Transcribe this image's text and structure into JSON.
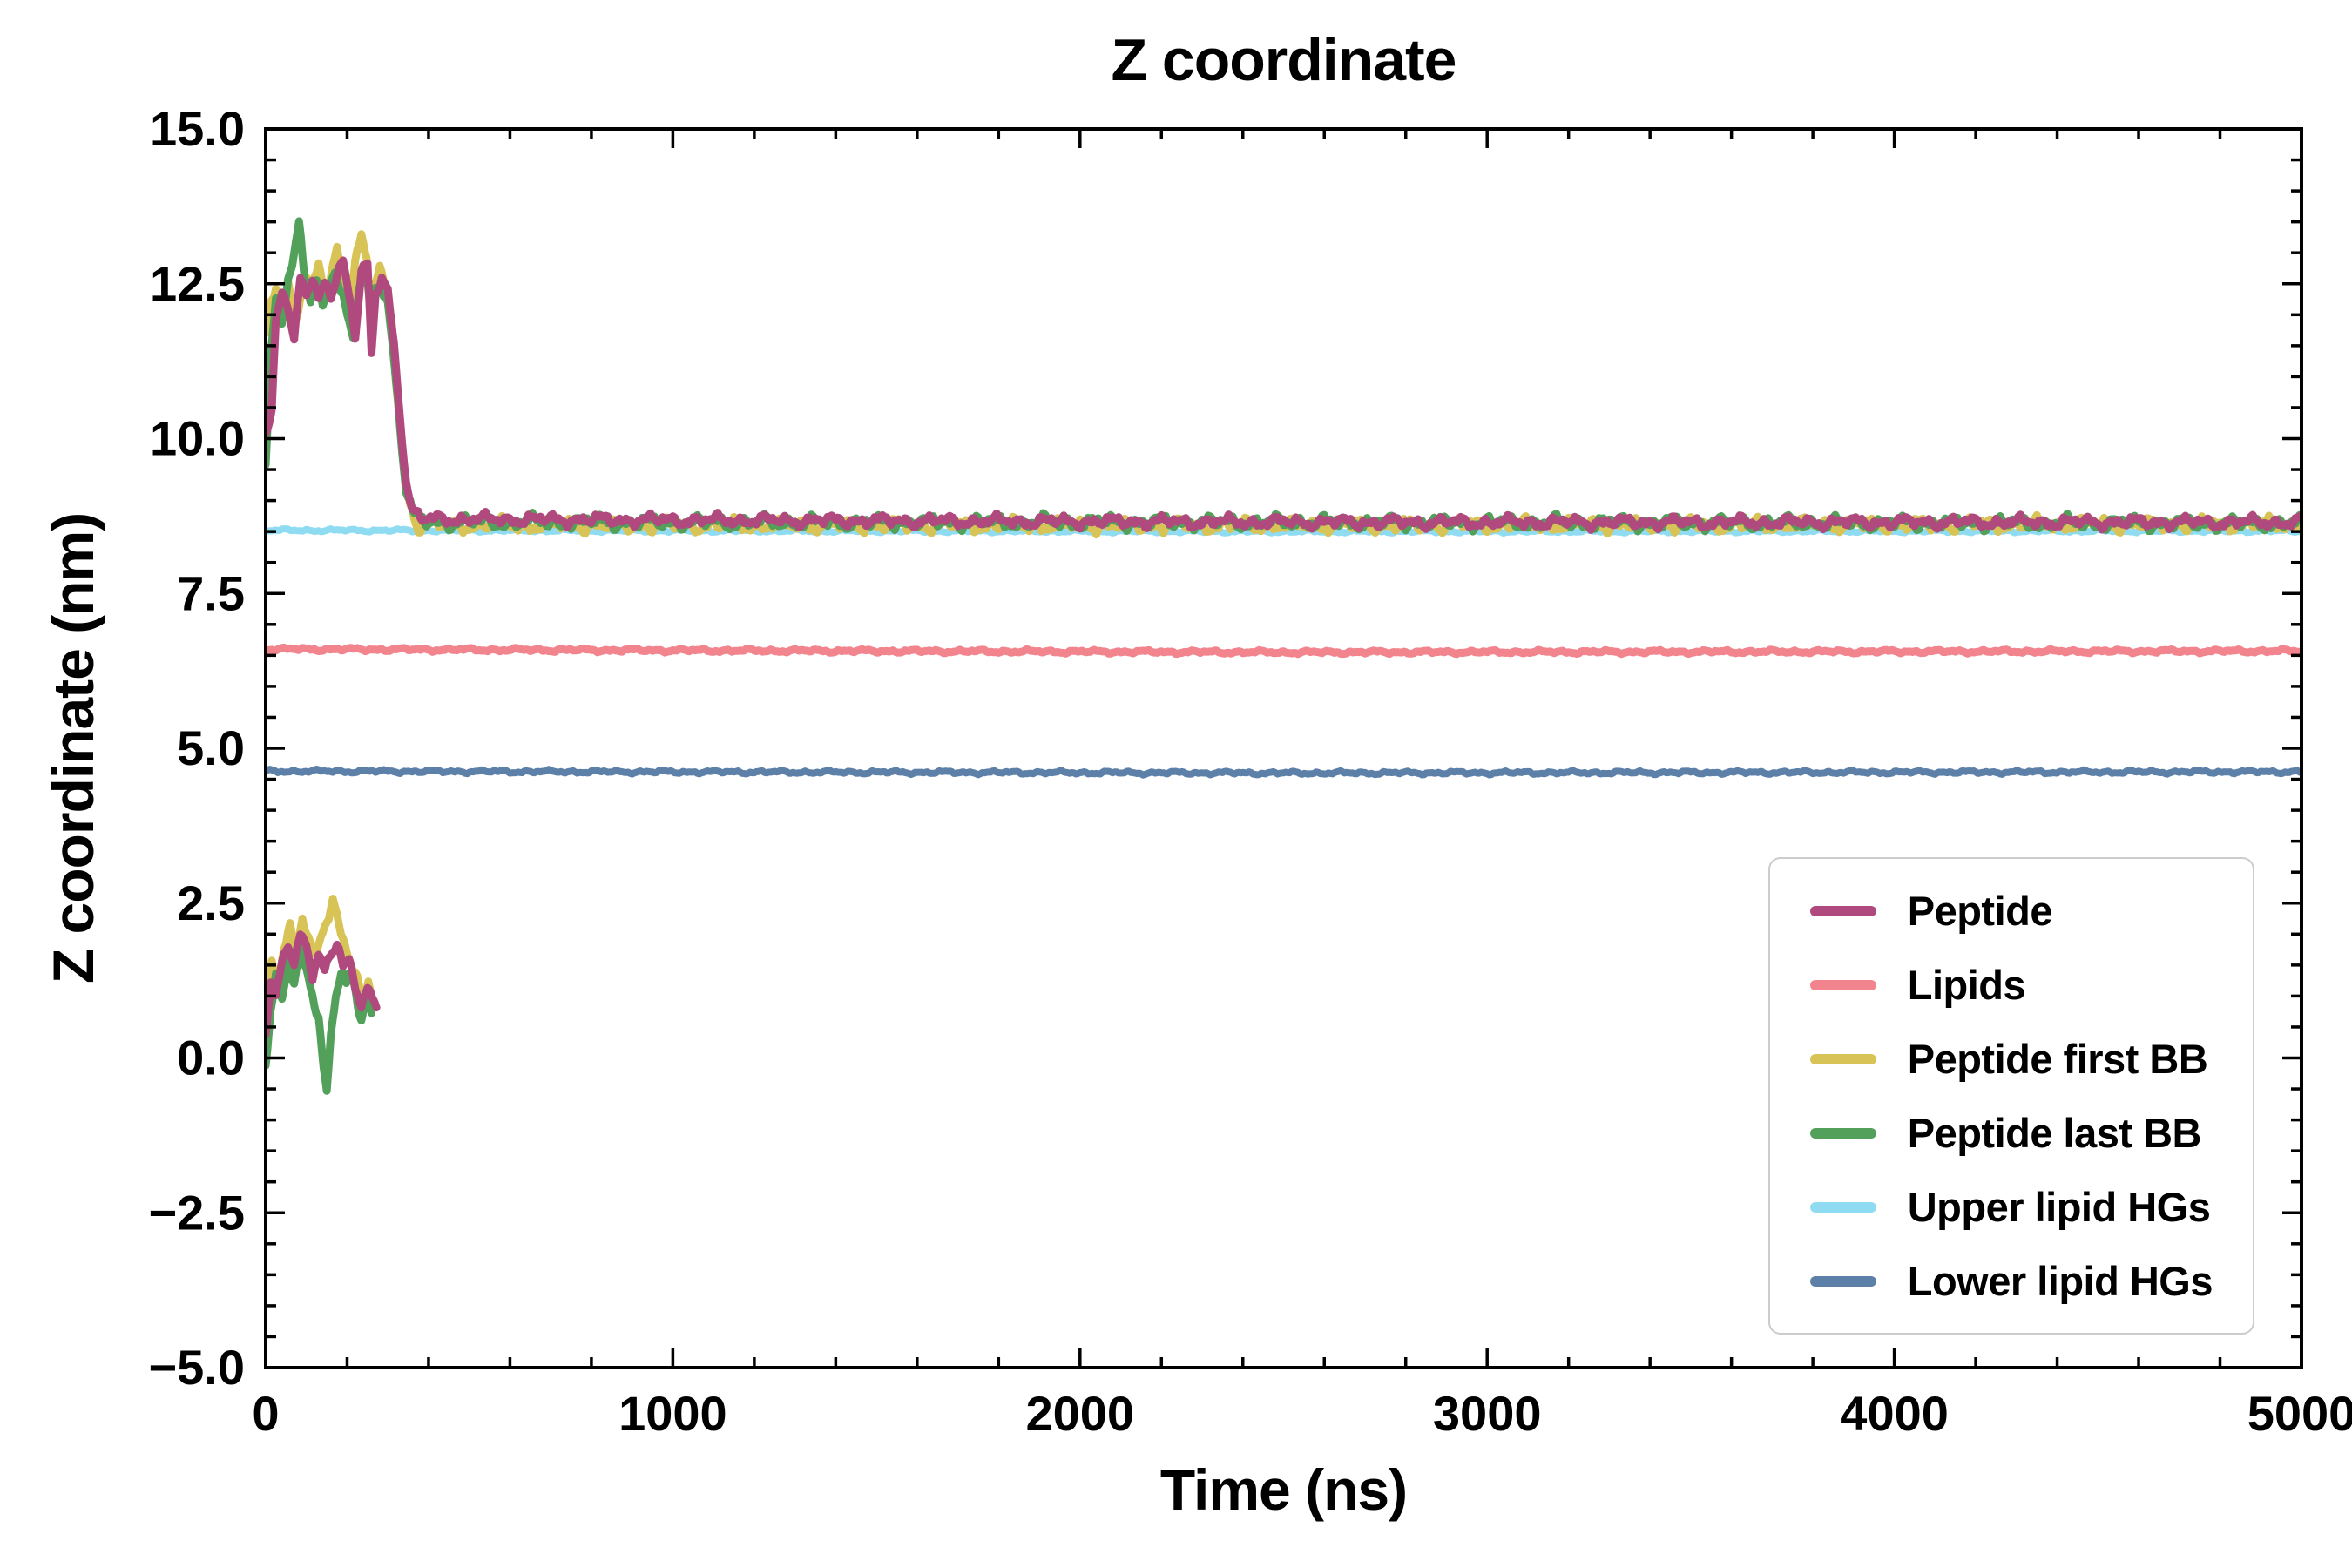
{
  "chart_data": {
    "type": "line",
    "title": "Z coordinate",
    "xlabel": "Time (ns)",
    "ylabel": "Z coordinate (nm)",
    "xlim": [
      0,
      5000
    ],
    "ylim": [
      -5,
      15
    ],
    "x_ticks": [
      0,
      1000,
      2000,
      3000,
      4000,
      5000
    ],
    "x_tick_labels": [
      "0",
      "1000",
      "2000",
      "3000",
      "4000",
      "5000"
    ],
    "y_ticks": [
      -5,
      -2.5,
      0,
      2.5,
      5,
      7.5,
      10,
      12.5,
      15
    ],
    "y_tick_labels": [
      "−5.0",
      "−2.5",
      "0.0",
      "2.5",
      "5.0",
      "7.5",
      "10.0",
      "12.5",
      "15.0"
    ],
    "x_minor_step": 200,
    "y_minor_step": 0.5,
    "grid": false,
    "legend_position": "lower right",
    "axis_color": "#000000",
    "series": [
      {
        "name": "Peptide",
        "color": "#b04a7e",
        "linewidth": 9,
        "zorder": 6,
        "noise": 0.1,
        "segments": [
          [
            [
              0,
              10.1
            ],
            [
              15,
              10.4
            ],
            [
              25,
              11.9
            ],
            [
              40,
              12.4
            ],
            [
              55,
              12.2
            ],
            [
              70,
              11.6
            ],
            [
              85,
              12.6
            ],
            [
              100,
              12.3
            ],
            [
              115,
              12.6
            ],
            [
              130,
              12.2
            ],
            [
              145,
              12.5
            ],
            [
              160,
              12.3
            ],
            [
              175,
              12.7
            ],
            [
              190,
              12.9
            ],
            [
              205,
              12.3
            ],
            [
              220,
              11.7
            ],
            [
              235,
              12.7
            ],
            [
              250,
              12.8
            ],
            [
              260,
              11.3
            ],
            [
              270,
              12.3
            ],
            [
              285,
              12.6
            ],
            [
              300,
              12.4
            ],
            [
              315,
              11.5
            ],
            [
              330,
              10.4
            ],
            [
              345,
              9.3
            ],
            [
              360,
              8.85
            ],
            [
              380,
              8.7
            ],
            [
              2500,
              8.65
            ],
            [
              5000,
              8.65
            ]
          ],
          [
            [
              0,
              0.4
            ],
            [
              12,
              1.2
            ],
            [
              25,
              1.0
            ],
            [
              40,
              1.6
            ],
            [
              55,
              1.9
            ],
            [
              70,
              1.5
            ],
            [
              85,
              2.0
            ],
            [
              100,
              1.8
            ],
            [
              115,
              1.3
            ],
            [
              130,
              1.6
            ],
            [
              145,
              1.4
            ],
            [
              160,
              1.7
            ],
            [
              175,
              1.9
            ],
            [
              190,
              1.5
            ],
            [
              205,
              1.6
            ],
            [
              220,
              1.2
            ],
            [
              235,
              0.8
            ],
            [
              250,
              1.1
            ],
            [
              262,
              0.9
            ],
            [
              272,
              0.8
            ]
          ]
        ]
      },
      {
        "name": "Lipids",
        "color": "#f2848e",
        "linewidth": 9,
        "zorder": 3,
        "noise": 0.03,
        "segments": [
          [
            [
              0,
              6.6
            ],
            [
              2500,
              6.55
            ],
            [
              5000,
              6.57
            ]
          ]
        ]
      },
      {
        "name": "Peptide first BB",
        "color": "#d8c356",
        "linewidth": 9,
        "zorder": 4,
        "noise": 0.12,
        "segments": [
          [
            [
              0,
              11.6
            ],
            [
              12,
              12.1
            ],
            [
              25,
              12.4
            ],
            [
              40,
              12.0
            ],
            [
              55,
              12.5
            ],
            [
              70,
              11.8
            ],
            [
              85,
              12.3
            ],
            [
              100,
              12.7
            ],
            [
              115,
              12.4
            ],
            [
              130,
              12.8
            ],
            [
              145,
              12.3
            ],
            [
              160,
              12.6
            ],
            [
              175,
              13.0
            ],
            [
              190,
              12.5
            ],
            [
              205,
              12.2
            ],
            [
              220,
              12.9
            ],
            [
              235,
              13.3
            ],
            [
              248,
              12.9
            ],
            [
              258,
              11.9
            ],
            [
              268,
              12.5
            ],
            [
              280,
              12.7
            ],
            [
              295,
              12.4
            ],
            [
              310,
              11.8
            ],
            [
              325,
              10.6
            ],
            [
              340,
              9.5
            ],
            [
              355,
              8.9
            ],
            [
              375,
              8.6
            ],
            [
              2500,
              8.6
            ],
            [
              5000,
              8.62
            ]
          ],
          [
            [
              0,
              1.0
            ],
            [
              15,
              1.5
            ],
            [
              30,
              1.2
            ],
            [
              45,
              1.8
            ],
            [
              60,
              2.1
            ],
            [
              75,
              1.7
            ],
            [
              90,
              2.3
            ],
            [
              105,
              2.0
            ],
            [
              120,
              1.6
            ],
            [
              135,
              1.9
            ],
            [
              150,
              2.2
            ],
            [
              165,
              2.5
            ],
            [
              180,
              2.1
            ],
            [
              195,
              1.8
            ],
            [
              210,
              1.6
            ],
            [
              225,
              1.3
            ],
            [
              240,
              0.9
            ],
            [
              252,
              1.2
            ],
            [
              265,
              1.0
            ]
          ]
        ]
      },
      {
        "name": "Peptide last BB",
        "color": "#52a05a",
        "linewidth": 9,
        "zorder": 5,
        "noise": 0.12,
        "segments": [
          [
            [
              0,
              9.6
            ],
            [
              12,
              11.4
            ],
            [
              25,
              12.2
            ],
            [
              40,
              11.9
            ],
            [
              55,
              12.6
            ],
            [
              70,
              13.0
            ],
            [
              82,
              13.4
            ],
            [
              95,
              12.6
            ],
            [
              110,
              12.2
            ],
            [
              125,
              12.6
            ],
            [
              140,
              12.1
            ],
            [
              155,
              12.4
            ],
            [
              170,
              12.8
            ],
            [
              185,
              12.4
            ],
            [
              200,
              12.0
            ],
            [
              215,
              11.6
            ],
            [
              230,
              12.5
            ],
            [
              245,
              12.7
            ],
            [
              258,
              12.0
            ],
            [
              270,
              12.4
            ],
            [
              285,
              12.5
            ],
            [
              300,
              12.2
            ],
            [
              315,
              11.3
            ],
            [
              330,
              10.2
            ],
            [
              345,
              9.2
            ],
            [
              360,
              8.8
            ],
            [
              380,
              8.65
            ],
            [
              2500,
              8.65
            ],
            [
              5000,
              8.63
            ]
          ],
          [
            [
              0,
              -0.1
            ],
            [
              12,
              0.8
            ],
            [
              25,
              1.3
            ],
            [
              40,
              1.0
            ],
            [
              55,
              1.6
            ],
            [
              70,
              1.2
            ],
            [
              85,
              1.7
            ],
            [
              100,
              1.4
            ],
            [
              115,
              1.0
            ],
            [
              130,
              0.6
            ],
            [
              142,
              -0.2
            ],
            [
              150,
              -0.5
            ],
            [
              160,
              0.4
            ],
            [
              172,
              1.1
            ],
            [
              185,
              1.4
            ],
            [
              198,
              1.2
            ],
            [
              210,
              1.4
            ],
            [
              222,
              1.0
            ],
            [
              235,
              0.6
            ],
            [
              248,
              0.9
            ],
            [
              260,
              0.7
            ]
          ]
        ]
      },
      {
        "name": "Upper lipid HGs",
        "color": "#8fdcf2",
        "linewidth": 8,
        "zorder": 2,
        "noise": 0.025,
        "segments": [
          [
            [
              0,
              8.52
            ],
            [
              2500,
              8.5
            ],
            [
              5000,
              8.51
            ]
          ]
        ]
      },
      {
        "name": "Lower lipid HGs",
        "color": "#5c80a8",
        "linewidth": 8,
        "zorder": 3,
        "noise": 0.03,
        "segments": [
          [
            [
              0,
              4.63
            ],
            [
              2500,
              4.6
            ],
            [
              5000,
              4.62
            ]
          ]
        ]
      }
    ]
  }
}
